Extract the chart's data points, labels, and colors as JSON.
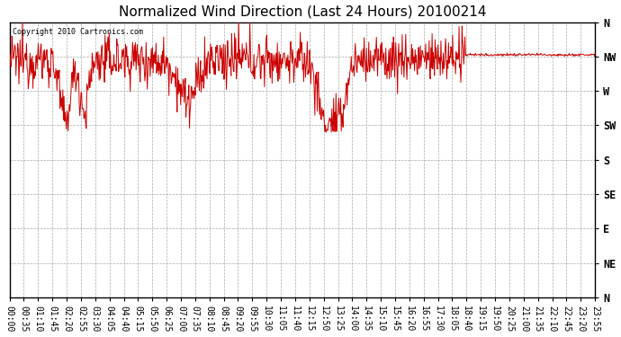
{
  "title": "Normalized Wind Direction (Last 24 Hours) 20100214",
  "copyright_text": "Copyright 2010 Cartronics.com",
  "line_color": "#cc0000",
  "bg_color": "#ffffff",
  "grid_color": "#aaaaaa",
  "ytick_labels": [
    "N",
    "NW",
    "W",
    "SW",
    "S",
    "SE",
    "E",
    "NE",
    "N"
  ],
  "ytick_values": [
    8,
    7,
    6,
    5,
    4,
    3,
    2,
    1,
    0
  ],
  "ylim": [
    0,
    8
  ],
  "title_fontsize": 11,
  "tick_fontsize": 7,
  "figsize": [
    6.9,
    3.75
  ],
  "dpi": 100,
  "label_times": [
    "00:00",
    "00:35",
    "01:10",
    "01:45",
    "02:20",
    "02:55",
    "03:30",
    "04:05",
    "04:40",
    "05:15",
    "05:50",
    "06:25",
    "07:00",
    "07:35",
    "08:10",
    "08:45",
    "09:20",
    "09:55",
    "10:30",
    "11:05",
    "11:40",
    "12:15",
    "12:50",
    "13:25",
    "14:00",
    "14:35",
    "15:10",
    "15:45",
    "16:20",
    "16:55",
    "17:30",
    "18:05",
    "18:40",
    "19:15",
    "19:50",
    "20:25",
    "21:00",
    "21:35",
    "22:10",
    "22:45",
    "23:20",
    "23:55"
  ]
}
